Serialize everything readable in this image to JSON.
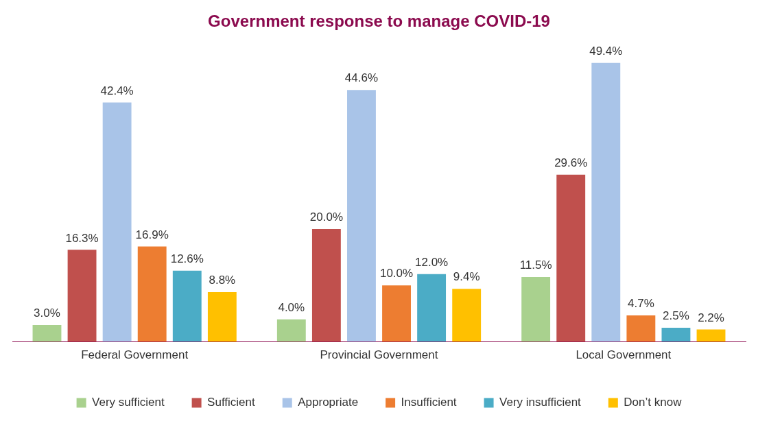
{
  "chart_data": {
    "type": "bar",
    "title": "Government response to manage COVID-19",
    "categories": [
      "Federal Government",
      "Provincial Government",
      "Local Government"
    ],
    "series": [
      {
        "name": "Very sufficient",
        "color": "#a9d18e",
        "values": [
          3.0,
          4.0,
          11.5
        ],
        "value_labels": [
          "3.0%",
          "4.0%",
          "11.5%"
        ]
      },
      {
        "name": "Sufficient",
        "color": "#c0504d",
        "values": [
          16.3,
          20.0,
          29.6
        ],
        "value_labels": [
          "16.3%",
          "20.0%",
          "29.6%"
        ]
      },
      {
        "name": "Appropriate",
        "color": "#a9c4e8",
        "values": [
          42.4,
          44.6,
          49.4
        ],
        "value_labels": [
          "42.4%",
          "44.6%",
          "49.4%"
        ]
      },
      {
        "name": "Insufficient",
        "color": "#ed7d31",
        "values": [
          16.9,
          10.0,
          4.7
        ],
        "value_labels": [
          "16.9%",
          "10.0%",
          "4.7%"
        ]
      },
      {
        "name": "Very insufficient",
        "color": "#4bacc6",
        "values": [
          12.6,
          12.0,
          2.5
        ],
        "value_labels": [
          "12.6%",
          "12.0%",
          "2.5%"
        ]
      },
      {
        "name": "Don’t know",
        "color": "#ffc000",
        "values": [
          8.8,
          9.4,
          2.2
        ],
        "value_labels": [
          "8.8%",
          "9.4%",
          "2.2%"
        ]
      }
    ],
    "grid": false,
    "legend": "bottom"
  }
}
